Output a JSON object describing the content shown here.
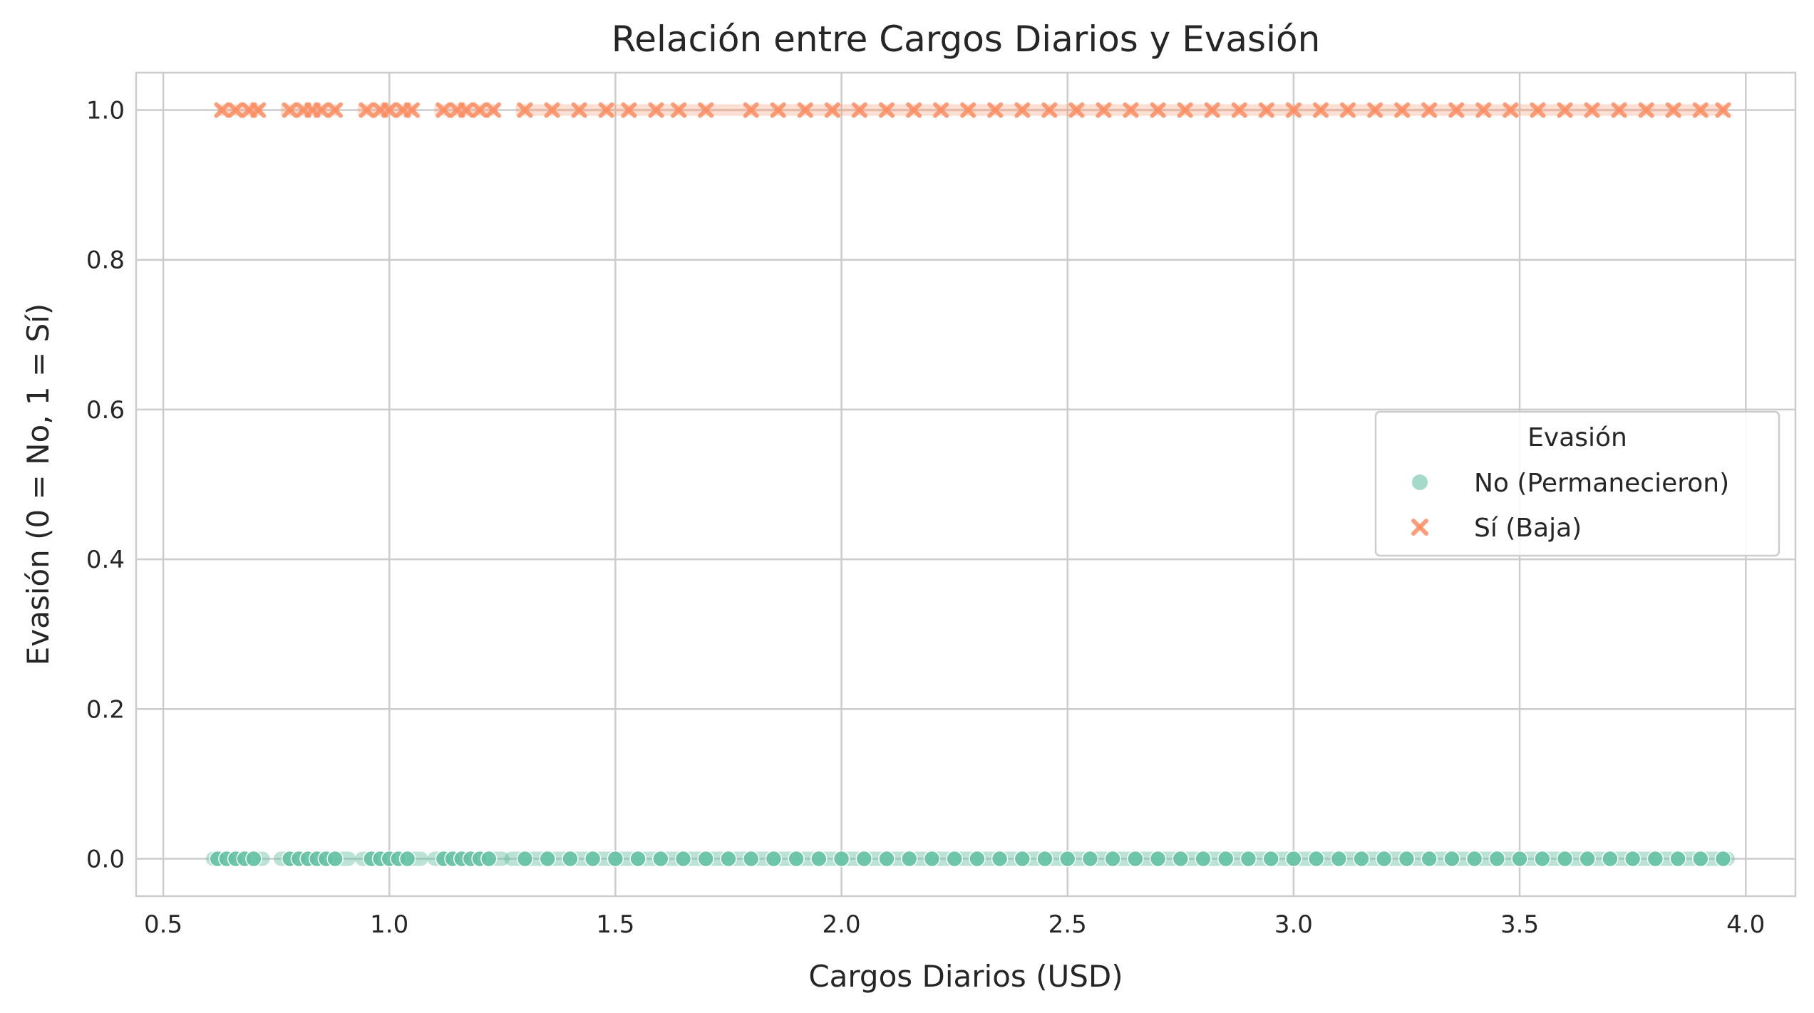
{
  "chart_data": {
    "type": "scatter",
    "title": "Relación entre Cargos Diarios y Evasión",
    "xlabel": "Cargos Diarios (USD)",
    "ylabel": "Evasión (0 = No, 1 = Sí)",
    "xlim": [
      0.44,
      4.11
    ],
    "ylim": [
      -0.05,
      1.05
    ],
    "xticks": [
      0.5,
      1.0,
      1.5,
      2.0,
      2.5,
      3.0,
      3.5,
      4.0
    ],
    "xtick_labels": [
      "0.5",
      "1.0",
      "1.5",
      "2.0",
      "2.5",
      "3.0",
      "3.5",
      "4.0"
    ],
    "yticks": [
      0.0,
      0.2,
      0.4,
      0.6,
      0.8,
      1.0
    ],
    "ytick_labels": [
      "0.0",
      "0.2",
      "0.4",
      "0.6",
      "0.8",
      "1.0"
    ],
    "grid": true,
    "legend": {
      "title": "Evasión",
      "placement": "center-right"
    },
    "series": [
      {
        "name": "No (Permanecieron)",
        "marker": "circle",
        "color": "#66c2a5",
        "y": 0,
        "x_ranges": [
          [
            0.61,
            0.72
          ],
          [
            0.76,
            0.91
          ],
          [
            0.94,
            1.07
          ],
          [
            1.1,
            1.25
          ],
          [
            1.27,
            3.96
          ]
        ],
        "x": [
          0.62,
          0.64,
          0.66,
          0.68,
          0.7,
          0.78,
          0.8,
          0.82,
          0.84,
          0.86,
          0.88,
          0.96,
          0.98,
          1.0,
          1.02,
          1.04,
          1.12,
          1.14,
          1.16,
          1.18,
          1.2,
          1.22,
          1.3,
          1.35,
          1.4,
          1.45,
          1.5,
          1.55,
          1.6,
          1.65,
          1.7,
          1.75,
          1.8,
          1.85,
          1.9,
          1.95,
          2.0,
          2.05,
          2.1,
          2.15,
          2.2,
          2.25,
          2.3,
          2.35,
          2.4,
          2.45,
          2.5,
          2.55,
          2.6,
          2.65,
          2.7,
          2.75,
          2.8,
          2.85,
          2.9,
          2.95,
          3.0,
          3.05,
          3.1,
          3.15,
          3.2,
          3.25,
          3.3,
          3.35,
          3.4,
          3.45,
          3.5,
          3.55,
          3.6,
          3.65,
          3.7,
          3.75,
          3.8,
          3.85,
          3.9,
          3.95
        ]
      },
      {
        "name": "Sí (Baja)",
        "marker": "x",
        "color": "#fc8d62",
        "y": 1,
        "x_ranges": [
          [
            0.62,
            0.72
          ],
          [
            0.76,
            0.89
          ],
          [
            0.93,
            1.06
          ],
          [
            1.1,
            1.24
          ],
          [
            1.28,
            3.96
          ]
        ],
        "x": [
          0.63,
          0.66,
          0.69,
          0.71,
          0.78,
          0.81,
          0.83,
          0.85,
          0.88,
          0.95,
          0.98,
          1.0,
          1.03,
          1.05,
          1.12,
          1.15,
          1.17,
          1.2,
          1.23,
          1.3,
          1.36,
          1.42,
          1.48,
          1.53,
          1.59,
          1.64,
          1.7,
          1.8,
          1.86,
          1.92,
          1.98,
          2.04,
          2.1,
          2.16,
          2.22,
          2.28,
          2.34,
          2.4,
          2.46,
          2.52,
          2.58,
          2.64,
          2.7,
          2.76,
          2.82,
          2.88,
          2.94,
          3.0,
          3.06,
          3.12,
          3.18,
          3.24,
          3.3,
          3.36,
          3.42,
          3.48,
          3.54,
          3.6,
          3.66,
          3.72,
          3.78,
          3.84,
          3.9,
          3.95
        ]
      }
    ]
  }
}
